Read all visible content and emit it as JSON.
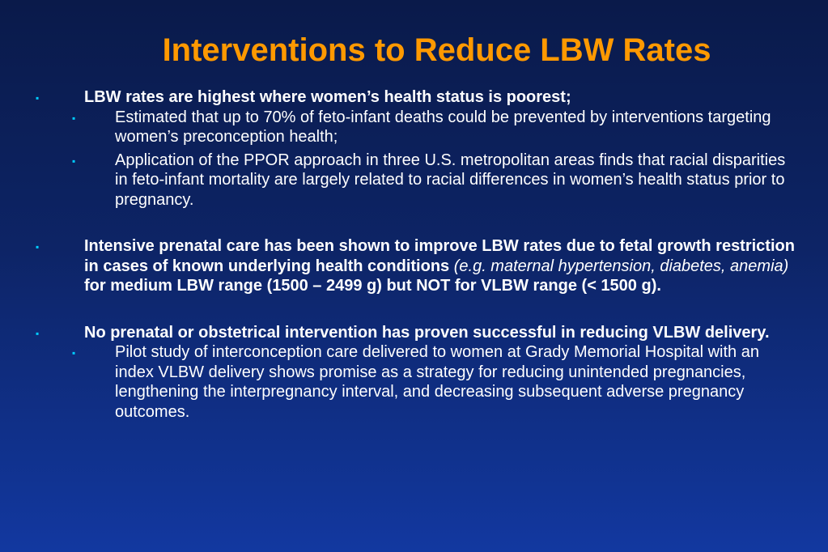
{
  "slide": {
    "title": "Interventions to Reduce LBW Rates",
    "bullet_glyph": "▪",
    "colors": {
      "title": "#ff9900",
      "bullet": "#00ccff",
      "text": "#ffffff",
      "background_top": "#0a1a4a",
      "background_bottom": "#1238a0"
    },
    "points": [
      {
        "text": "LBW rates are highest where women’s health status is poorest;",
        "subpoints": [
          "Estimated that up to 70% of feto-infant deaths could be prevented by interventions targeting women’s preconception health;",
          "Application of the PPOR approach in three U.S. metropolitan areas finds that racial disparities in feto-infant mortality are largely related to racial differences in women’s health status prior to pregnancy."
        ]
      },
      {
        "text_a": "Intensive prenatal care has been shown to improve LBW rates due to fetal growth restriction in cases of known underlying health conditions",
        "text_italic": "(e.g. maternal hypertension, diabetes, anemia)",
        "text_b": "for medium LBW range (1500 – 2499 g) but NOT for VLBW range (< 1500 g)."
      },
      {
        "text": "No prenatal or obstetrical intervention has proven successful in reducing VLBW delivery.",
        "subpoints": [
          "Pilot study of interconception care delivered to women at Grady Memorial Hospital with an index VLBW delivery shows promise as a strategy for reducing unintended pregnancies, lengthening the interpregnancy interval, and decreasing subsequent adverse pregnancy outcomes."
        ]
      }
    ]
  }
}
